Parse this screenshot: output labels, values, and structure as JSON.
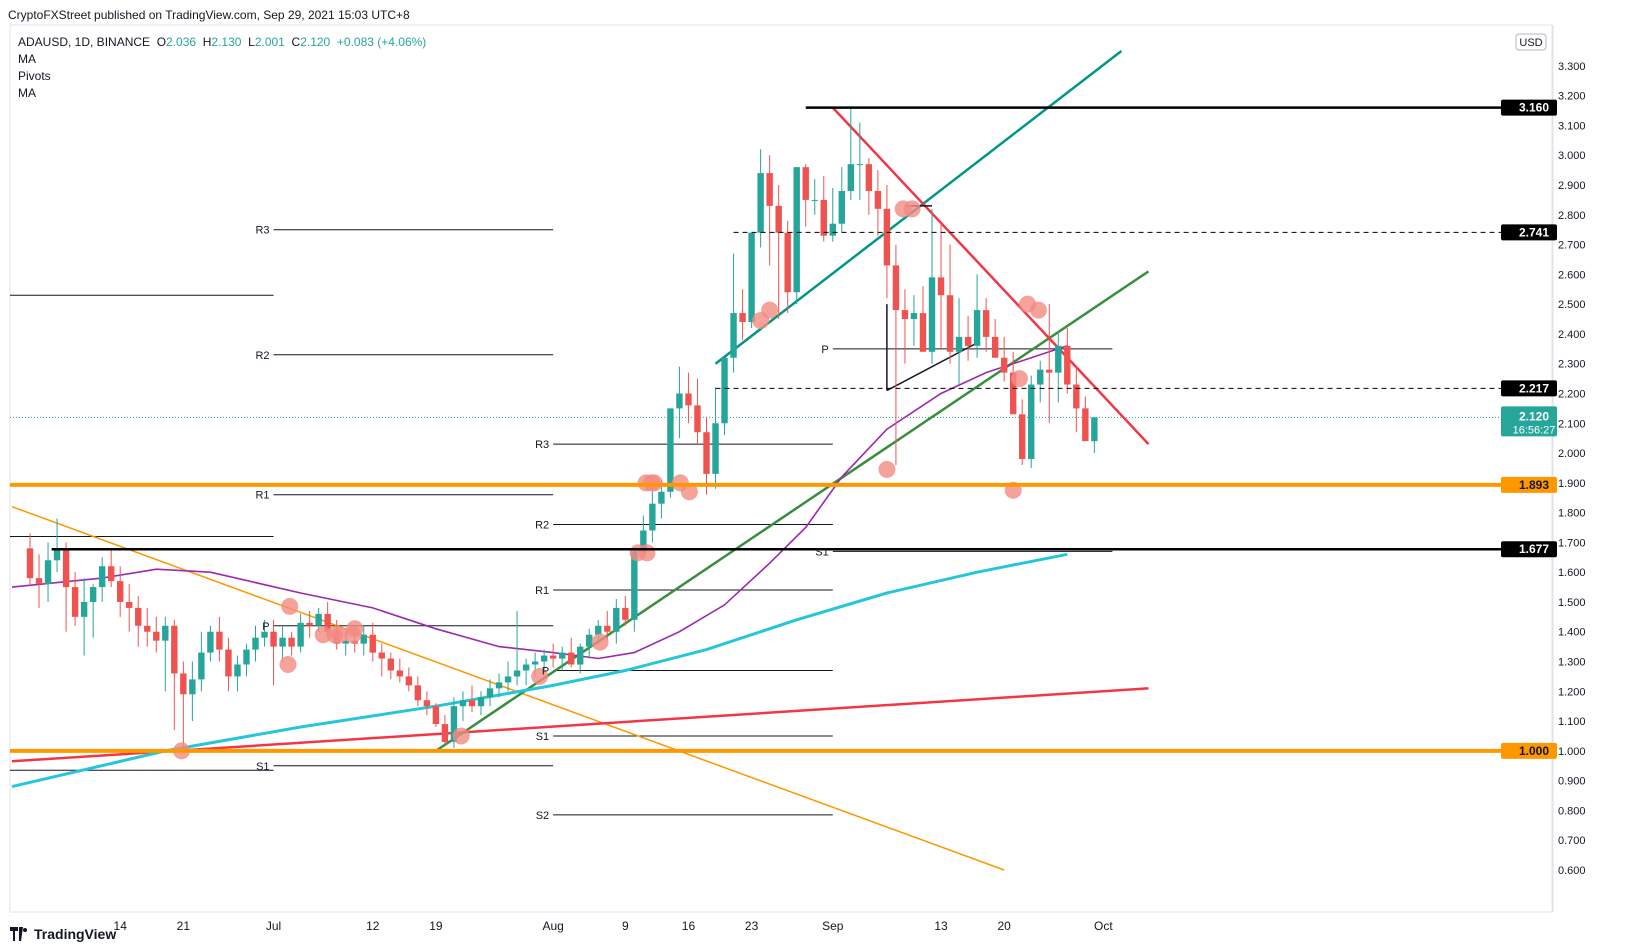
{
  "header": {
    "published": "CryptoFXStreet published on TradingView.com, Sep 29, 2021 15:03 UTC+8"
  },
  "legend": {
    "symbol": "ADAUSD, 1D, BINANCE",
    "o_label": "O",
    "o_value": "2.036",
    "h_label": "H",
    "h_value": "2.130",
    "l_label": "L",
    "l_value": "2.001",
    "c_label": "C",
    "c_value": "2.120",
    "change": "+0.083 (+4.06%)",
    "indicators": [
      "MA",
      "Pivots",
      "MA"
    ]
  },
  "footer": {
    "brand": "TradingView"
  },
  "colors": {
    "up": "#26a69a",
    "down": "#ef5350",
    "orange": "#ff9800",
    "teal_line": "#009688",
    "green_line": "#388e3c",
    "red_line": "#f23645",
    "purple_ma": "#9c27b0",
    "cyan_ma": "#26c6da",
    "highlight_circle": "#f28b82",
    "black": "#000000"
  },
  "chart_data": {
    "type": "candlestick",
    "currency": "USD",
    "ylim": [
      0.6,
      3.35
    ],
    "y_ticks": [
      "3.300",
      "3.200",
      "3.100",
      "3.000",
      "2.900",
      "2.800",
      "2.700",
      "2.600",
      "2.500",
      "2.400",
      "2.300",
      "2.200",
      "2.100",
      "2.000",
      "1.900",
      "1.800",
      "1.700",
      "1.600",
      "1.500",
      "1.400",
      "1.300",
      "1.200",
      "1.100",
      "1.000",
      "0.900",
      "0.800",
      "0.700",
      "0.600"
    ],
    "x_ticks": [
      {
        "label": "14",
        "day": 10
      },
      {
        "label": "21",
        "day": 17
      },
      {
        "label": "Jul",
        "day": 27
      },
      {
        "label": "12",
        "day": 38
      },
      {
        "label": "19",
        "day": 45
      },
      {
        "label": "Aug",
        "day": 58
      },
      {
        "label": "9",
        "day": 66
      },
      {
        "label": "16",
        "day": 73
      },
      {
        "label": "23",
        "day": 80
      },
      {
        "label": "Sep",
        "day": 89
      },
      {
        "label": "13",
        "day": 101
      },
      {
        "label": "20",
        "day": 108
      },
      {
        "label": "Oct",
        "day": 119
      }
    ],
    "ohlc": [
      [
        1.68,
        1.73,
        1.56,
        1.58
      ],
      [
        1.58,
        1.66,
        1.48,
        1.56
      ],
      [
        1.56,
        1.7,
        1.5,
        1.64
      ],
      [
        1.64,
        1.78,
        1.6,
        1.68
      ],
      [
        1.68,
        1.7,
        1.4,
        1.55
      ],
      [
        1.55,
        1.6,
        1.42,
        1.45
      ],
      [
        1.45,
        1.58,
        1.32,
        1.5
      ],
      [
        1.5,
        1.56,
        1.38,
        1.55
      ],
      [
        1.55,
        1.65,
        1.5,
        1.62
      ],
      [
        1.62,
        1.68,
        1.55,
        1.57
      ],
      [
        1.57,
        1.62,
        1.45,
        1.5
      ],
      [
        1.5,
        1.56,
        1.4,
        1.48
      ],
      [
        1.48,
        1.52,
        1.35,
        1.42
      ],
      [
        1.42,
        1.48,
        1.35,
        1.4
      ],
      [
        1.4,
        1.45,
        1.33,
        1.37
      ],
      [
        1.37,
        1.45,
        1.2,
        1.42
      ],
      [
        1.42,
        1.44,
        1.07,
        1.26
      ],
      [
        1.26,
        1.3,
        1.0,
        1.19
      ],
      [
        1.19,
        1.3,
        1.1,
        1.24
      ],
      [
        1.24,
        1.4,
        1.2,
        1.33
      ],
      [
        1.33,
        1.42,
        1.3,
        1.4
      ],
      [
        1.4,
        1.45,
        1.3,
        1.34
      ],
      [
        1.34,
        1.38,
        1.2,
        1.25
      ],
      [
        1.25,
        1.32,
        1.2,
        1.29
      ],
      [
        1.29,
        1.36,
        1.25,
        1.34
      ],
      [
        1.34,
        1.42,
        1.3,
        1.38
      ],
      [
        1.38,
        1.44,
        1.35,
        1.4
      ],
      [
        1.4,
        1.44,
        1.22,
        1.35
      ],
      [
        1.35,
        1.42,
        1.3,
        1.38
      ],
      [
        1.38,
        1.4,
        1.32,
        1.35
      ],
      [
        1.35,
        1.46,
        1.33,
        1.43
      ],
      [
        1.43,
        1.47,
        1.38,
        1.42
      ],
      [
        1.42,
        1.48,
        1.4,
        1.46
      ],
      [
        1.46,
        1.5,
        1.38,
        1.4
      ],
      [
        1.4,
        1.44,
        1.34,
        1.36
      ],
      [
        1.36,
        1.4,
        1.32,
        1.37
      ],
      [
        1.37,
        1.42,
        1.33,
        1.36
      ],
      [
        1.36,
        1.42,
        1.32,
        1.39
      ],
      [
        1.39,
        1.43,
        1.3,
        1.33
      ],
      [
        1.33,
        1.36,
        1.25,
        1.31
      ],
      [
        1.31,
        1.33,
        1.24,
        1.27
      ],
      [
        1.27,
        1.31,
        1.23,
        1.25
      ],
      [
        1.25,
        1.28,
        1.2,
        1.22
      ],
      [
        1.22,
        1.25,
        1.15,
        1.17
      ],
      [
        1.17,
        1.2,
        1.12,
        1.15
      ],
      [
        1.15,
        1.16,
        1.08,
        1.09
      ],
      [
        1.09,
        1.12,
        1.02,
        1.03
      ],
      [
        1.03,
        1.18,
        1.01,
        1.15
      ],
      [
        1.15,
        1.2,
        1.1,
        1.17
      ],
      [
        1.17,
        1.22,
        1.13,
        1.15
      ],
      [
        1.15,
        1.2,
        1.12,
        1.18
      ],
      [
        1.18,
        1.24,
        1.15,
        1.21
      ],
      [
        1.21,
        1.26,
        1.18,
        1.23
      ],
      [
        1.23,
        1.3,
        1.2,
        1.25
      ],
      [
        1.25,
        1.47,
        1.22,
        1.27
      ],
      [
        1.27,
        1.31,
        1.22,
        1.29
      ],
      [
        1.29,
        1.33,
        1.25,
        1.3
      ],
      [
        1.3,
        1.34,
        1.27,
        1.32
      ],
      [
        1.32,
        1.36,
        1.28,
        1.31
      ],
      [
        1.31,
        1.35,
        1.27,
        1.33
      ],
      [
        1.33,
        1.38,
        1.28,
        1.29
      ],
      [
        1.29,
        1.36,
        1.26,
        1.35
      ],
      [
        1.35,
        1.41,
        1.31,
        1.39
      ],
      [
        1.39,
        1.44,
        1.36,
        1.42
      ],
      [
        1.42,
        1.47,
        1.37,
        1.4
      ],
      [
        1.4,
        1.51,
        1.36,
        1.48
      ],
      [
        1.48,
        1.52,
        1.42,
        1.44
      ],
      [
        1.44,
        1.66,
        1.4,
        1.67
      ],
      [
        1.67,
        1.79,
        1.66,
        1.74
      ],
      [
        1.74,
        1.9,
        1.7,
        1.83
      ],
      [
        1.83,
        1.91,
        1.78,
        1.87
      ],
      [
        1.87,
        2.15,
        1.85,
        2.15
      ],
      [
        2.15,
        2.29,
        2.05,
        2.2
      ],
      [
        2.2,
        2.27,
        2.1,
        2.16
      ],
      [
        2.16,
        2.25,
        2.03,
        2.07
      ],
      [
        2.07,
        2.12,
        1.86,
        1.93
      ],
      [
        1.93,
        2.22,
        1.88,
        2.1
      ],
      [
        2.1,
        2.32,
        2.06,
        2.32
      ],
      [
        2.32,
        2.67,
        2.27,
        2.47
      ],
      [
        2.47,
        2.55,
        2.38,
        2.44
      ],
      [
        2.44,
        2.74,
        2.42,
        2.74
      ],
      [
        2.74,
        3.02,
        2.69,
        2.94
      ],
      [
        2.94,
        3.0,
        2.63,
        2.83
      ],
      [
        2.83,
        2.9,
        2.45,
        2.74
      ],
      [
        2.74,
        2.78,
        2.47,
        2.54
      ],
      [
        2.54,
        2.96,
        2.5,
        2.96
      ],
      [
        2.96,
        2.97,
        2.76,
        2.85
      ],
      [
        2.85,
        2.92,
        2.8,
        2.85
      ],
      [
        2.85,
        2.93,
        2.71,
        2.73
      ],
      [
        2.73,
        2.89,
        2.71,
        2.77
      ],
      [
        2.77,
        2.96,
        2.74,
        2.88
      ],
      [
        2.88,
        3.16,
        2.85,
        2.97
      ],
      [
        2.97,
        3.11,
        2.85,
        2.97
      ],
      [
        2.97,
        2.99,
        2.8,
        2.88
      ],
      [
        2.88,
        2.95,
        2.73,
        2.82
      ],
      [
        2.82,
        2.9,
        2.52,
        2.63
      ],
      [
        2.63,
        2.7,
        1.96,
        2.48
      ],
      [
        2.48,
        2.55,
        2.3,
        2.45
      ],
      [
        2.45,
        2.53,
        2.36,
        2.47
      ],
      [
        2.47,
        2.56,
        2.36,
        2.34
      ],
      [
        2.34,
        2.82,
        2.3,
        2.59
      ],
      [
        2.59,
        2.78,
        2.35,
        2.53
      ],
      [
        2.53,
        2.7,
        2.3,
        2.34
      ],
      [
        2.34,
        2.52,
        2.23,
        2.39
      ],
      [
        2.39,
        2.46,
        2.31,
        2.36
      ],
      [
        2.36,
        2.6,
        2.32,
        2.48
      ],
      [
        2.48,
        2.52,
        2.34,
        2.39
      ],
      [
        2.39,
        2.45,
        2.32,
        2.32
      ],
      [
        2.32,
        2.39,
        2.24,
        2.27
      ],
      [
        2.27,
        2.34,
        2.15,
        2.13
      ],
      [
        2.13,
        2.18,
        1.96,
        1.98
      ],
      [
        1.98,
        2.26,
        1.95,
        2.23
      ],
      [
        2.23,
        2.31,
        2.17,
        2.28
      ],
      [
        2.28,
        2.5,
        2.1,
        2.27
      ],
      [
        2.27,
        2.41,
        2.17,
        2.36
      ],
      [
        2.36,
        2.42,
        2.2,
        2.23
      ],
      [
        2.23,
        2.29,
        2.07,
        2.15
      ],
      [
        2.15,
        2.19,
        2.05,
        2.04
      ],
      [
        2.04,
        2.12,
        2.0,
        2.12
      ]
    ],
    "horizontal_levels": [
      {
        "value": 3.16,
        "label": "3.160"
      },
      {
        "value": 2.741,
        "label": "2.741"
      },
      {
        "value": 2.217,
        "label": "2.217"
      },
      {
        "value": 1.893,
        "label": "1.893"
      },
      {
        "value": 1.677,
        "label": "1.677"
      },
      {
        "value": 1.0,
        "label": "1.000"
      }
    ],
    "current_price": {
      "value": 2.12,
      "label": "2.120",
      "countdown": "16:56:27"
    },
    "pivots": [
      {
        "label": "R3",
        "value": 2.75,
        "from": 27,
        "to": 58
      },
      {
        "label": "R2",
        "value": 2.33,
        "from": 27,
        "to": 58
      },
      {
        "label": "R1",
        "value": 1.86,
        "from": 27,
        "to": 58
      },
      {
        "label": "P",
        "value": 1.42,
        "from": 27,
        "to": 58
      },
      {
        "label": "S1",
        "value": 0.95,
        "from": 27,
        "to": 58
      },
      {
        "label": "R3",
        "value": 2.03,
        "from": 58,
        "to": 89
      },
      {
        "label": "R2",
        "value": 1.76,
        "from": 58,
        "to": 89
      },
      {
        "label": "R1",
        "value": 1.54,
        "from": 58,
        "to": 89
      },
      {
        "label": "P",
        "value": 1.27,
        "from": 58,
        "to": 89
      },
      {
        "label": "S1",
        "value": 1.05,
        "from": 58,
        "to": 89
      },
      {
        "label": "S2",
        "value": 0.785,
        "from": 58,
        "to": 89
      },
      {
        "label": "P",
        "value": 2.35,
        "from": 89,
        "to": 120
      },
      {
        "label": "S1",
        "value": 1.67,
        "from": 89,
        "to": 120
      }
    ],
    "prior_pivot_stubs": [
      2.53,
      1.72,
      0.935
    ],
    "trendlines": [
      {
        "color": "orange",
        "from": [
          -2,
          1.82
        ],
        "to": [
          108,
          0.6
        ]
      },
      {
        "color": "red_line",
        "from": [
          -2,
          0.965
        ],
        "to": [
          124,
          1.21
        ]
      },
      {
        "color": "green_line",
        "from": [
          45,
          1.0
        ],
        "to": [
          124,
          2.61
        ]
      },
      {
        "color": "teal_line",
        "from": [
          76,
          2.3
        ],
        "to": [
          121,
          3.35
        ]
      },
      {
        "color": "red_line",
        "from": [
          89,
          3.16
        ],
        "to": [
          124,
          2.03
        ]
      }
    ],
    "minor_lines": [
      {
        "from": [
          95,
          2.21
        ],
        "to": [
          105,
          2.37
        ]
      },
      {
        "from": [
          95,
          2.21
        ],
        "to": [
          95,
          2.5
        ]
      },
      {
        "from": [
          97,
          2.83
        ],
        "to": [
          100,
          2.83
        ]
      }
    ],
    "ma_purple": [
      [
        -2,
        1.55
      ],
      [
        8,
        1.58
      ],
      [
        14,
        1.61
      ],
      [
        20,
        1.6
      ],
      [
        30,
        1.53
      ],
      [
        38,
        1.48
      ],
      [
        45,
        1.41
      ],
      [
        52,
        1.35
      ],
      [
        58,
        1.33
      ],
      [
        63,
        1.31
      ],
      [
        67,
        1.33
      ],
      [
        72,
        1.4
      ],
      [
        77,
        1.49
      ],
      [
        82,
        1.63
      ],
      [
        86,
        1.75
      ],
      [
        90,
        1.92
      ],
      [
        95,
        2.08
      ],
      [
        101,
        2.2
      ],
      [
        106,
        2.27
      ],
      [
        111,
        2.32
      ],
      [
        115,
        2.36
      ]
    ],
    "ma_cyan": [
      [
        -2,
        0.88
      ],
      [
        15,
        1.0
      ],
      [
        30,
        1.08
      ],
      [
        45,
        1.15
      ],
      [
        58,
        1.22
      ],
      [
        66,
        1.27
      ],
      [
        75,
        1.34
      ],
      [
        85,
        1.44
      ],
      [
        95,
        1.53
      ],
      [
        105,
        1.6
      ],
      [
        115,
        1.66
      ]
    ],
    "circles": [
      [
        16.8,
        1.0
      ],
      [
        28.8,
        1.485
      ],
      [
        28.6,
        1.29
      ],
      [
        32.5,
        1.39
      ],
      [
        33.8,
        1.39
      ],
      [
        34.3,
        1.39
      ],
      [
        35.8,
        1.39
      ],
      [
        36,
        1.41
      ],
      [
        47.8,
        1.05
      ],
      [
        56.5,
        1.25
      ],
      [
        63.2,
        1.365
      ],
      [
        67.4,
        1.665
      ],
      [
        68.4,
        1.665
      ],
      [
        68.3,
        1.9
      ],
      [
        68.9,
        1.9
      ],
      [
        69.2,
        1.9
      ],
      [
        72.1,
        1.9
      ],
      [
        73.1,
        1.87
      ],
      [
        81,
        2.445
      ],
      [
        82,
        2.48
      ],
      [
        95,
        1.945
      ],
      [
        96.8,
        2.82
      ],
      [
        97.8,
        2.82
      ],
      [
        109,
        1.875
      ],
      [
        109.7,
        2.25
      ],
      [
        110.6,
        2.5
      ],
      [
        111.8,
        2.48
      ]
    ]
  }
}
